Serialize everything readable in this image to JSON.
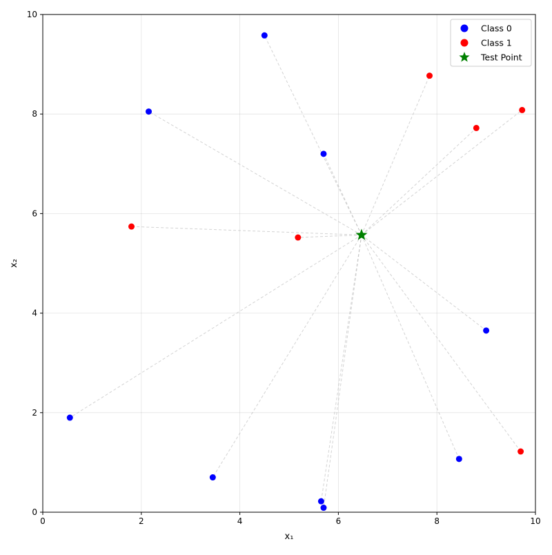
{
  "chart_data": {
    "type": "scatter",
    "title": "",
    "xlabel": "x₁",
    "ylabel": "x₂",
    "xlim": [
      0,
      10
    ],
    "ylim": [
      0,
      10
    ],
    "xticks": [
      0,
      2,
      4,
      6,
      8,
      10
    ],
    "yticks": [
      0,
      2,
      4,
      6,
      8,
      10
    ],
    "grid": true,
    "legend_position": "top-right",
    "connections": "dashed gray lines from test point to every data point",
    "series": [
      {
        "name": "Class 0",
        "color": "#0000ff",
        "marker": "circle",
        "points": [
          [
            4.5,
            9.58
          ],
          [
            2.15,
            8.05
          ],
          [
            5.7,
            7.2
          ],
          [
            9.0,
            3.65
          ],
          [
            0.55,
            1.9
          ],
          [
            3.45,
            0.7
          ],
          [
            8.45,
            1.07
          ],
          [
            5.65,
            0.22
          ],
          [
            5.7,
            0.09
          ]
        ]
      },
      {
        "name": "Class 1",
        "color": "#ff0000",
        "marker": "circle",
        "points": [
          [
            7.85,
            8.77
          ],
          [
            9.73,
            8.08
          ],
          [
            8.8,
            7.72
          ],
          [
            1.8,
            5.74
          ],
          [
            5.18,
            5.52
          ],
          [
            9.7,
            1.22
          ]
        ]
      },
      {
        "name": "Test Point",
        "color": "#008000",
        "marker": "star",
        "points": [
          [
            6.47,
            5.57
          ]
        ]
      }
    ]
  }
}
